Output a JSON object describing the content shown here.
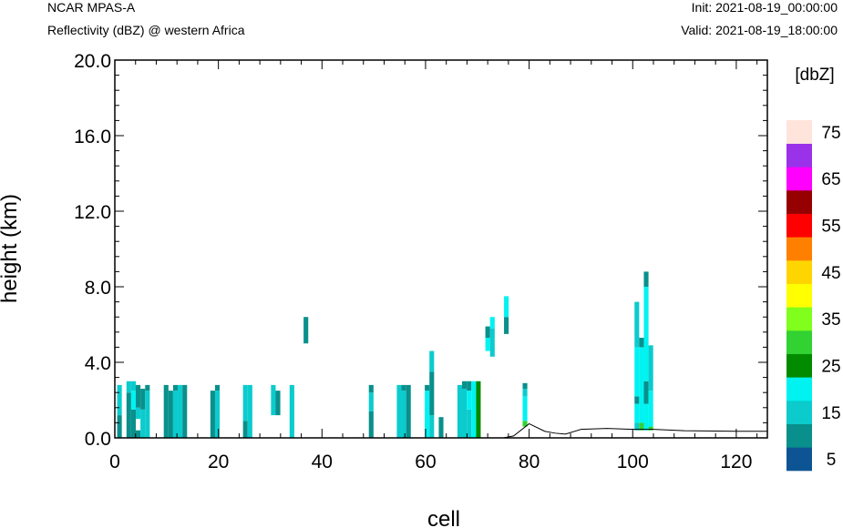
{
  "header": {
    "model": "NCAR MPAS-A",
    "field": "Reflectivity (dBZ) @ western Africa",
    "init": "Init: 2021-08-19_00:00:00",
    "valid": "Valid: 2021-08-19_18:00:00"
  },
  "chart_data": {
    "type": "heatmap",
    "xlabel": "cell",
    "ylabel": "height (km)",
    "xlim": [
      0,
      126
    ],
    "ylim": [
      0,
      20
    ],
    "x_ticks": [
      "0",
      "20",
      "40",
      "60",
      "80",
      "100",
      "120"
    ],
    "y_ticks": [
      "0.0",
      "4.0",
      "8.0",
      "12.0",
      "16.0",
      "20.0"
    ],
    "grid": false,
    "colorbar": {
      "unit": "[dbZ]",
      "labels": [
        "5",
        "15",
        "25",
        "35",
        "45",
        "55",
        "65",
        "75"
      ],
      "colors": [
        "#0d5494",
        "#09908c",
        "#0bcbcd",
        "#00f3f1",
        "#038b00",
        "#32d232",
        "#80ff1c",
        "#ffff00",
        "#ffd500",
        "#ff8000",
        "#ff0000",
        "#960000",
        "#ff00ff",
        "#9932e8",
        "#ffe4dc"
      ]
    },
    "terrain": {
      "x": [
        0,
        75,
        77,
        80,
        83,
        85,
        87,
        90,
        95,
        100,
        104,
        110,
        120,
        126
      ],
      "y": [
        0,
        0,
        0.1,
        0.75,
        0.35,
        0.25,
        0.2,
        0.45,
        0.5,
        0.45,
        0.45,
        0.38,
        0.35,
        0.35
      ]
    },
    "cells": [
      {
        "x": 0.9,
        "segments": [
          [
            0,
            1.2,
            5
          ],
          [
            1.2,
            2.8,
            10
          ]
        ]
      },
      {
        "x": 2.7,
        "segments": [
          [
            0,
            2.4,
            5
          ],
          [
            2.4,
            3.0,
            10
          ]
        ]
      },
      {
        "x": 3.6,
        "segments": [
          [
            0,
            1.5,
            5
          ],
          [
            1.5,
            2.5,
            15
          ],
          [
            2.5,
            3.0,
            10
          ]
        ]
      },
      {
        "x": 4.5,
        "segments": [
          [
            0,
            0.4,
            5
          ],
          [
            1.0,
            1.6,
            10
          ],
          [
            1.6,
            2.8,
            5
          ]
        ]
      },
      {
        "x": 5.4,
        "segments": [
          [
            0,
            1.5,
            10
          ],
          [
            1.5,
            2.6,
            5
          ]
        ]
      },
      {
        "x": 6.3,
        "segments": [
          [
            0,
            2.5,
            10
          ],
          [
            2.5,
            2.8,
            5
          ]
        ]
      },
      {
        "x": 9.9,
        "segments": [
          [
            0,
            2.8,
            5
          ]
        ]
      },
      {
        "x": 10.8,
        "segments": [
          [
            0,
            2.5,
            5
          ]
        ]
      },
      {
        "x": 11.7,
        "segments": [
          [
            0,
            2.5,
            10
          ],
          [
            2.5,
            2.8,
            5
          ]
        ]
      },
      {
        "x": 12.6,
        "segments": [
          [
            0,
            2.8,
            10
          ]
        ]
      },
      {
        "x": 13.5,
        "segments": [
          [
            0,
            2.8,
            5
          ]
        ]
      },
      {
        "x": 18.9,
        "segments": [
          [
            0,
            2.5,
            5
          ]
        ]
      },
      {
        "x": 19.8,
        "segments": [
          [
            0,
            2.5,
            10
          ],
          [
            2.5,
            2.8,
            5
          ]
        ]
      },
      {
        "x": 25.2,
        "segments": [
          [
            0,
            0.9,
            5
          ],
          [
            0.9,
            2.8,
            10
          ]
        ]
      },
      {
        "x": 26.1,
        "segments": [
          [
            0,
            2.8,
            10
          ]
        ]
      },
      {
        "x": 30.6,
        "segments": [
          [
            1.2,
            2.8,
            10
          ]
        ]
      },
      {
        "x": 31.5,
        "segments": [
          [
            1.2,
            2.5,
            5
          ]
        ]
      },
      {
        "x": 34.2,
        "segments": [
          [
            0,
            2.8,
            10
          ]
        ]
      },
      {
        "x": 36.9,
        "segments": [
          [
            5.0,
            6.4,
            5
          ]
        ]
      },
      {
        "x": 49.5,
        "segments": [
          [
            0,
            1.4,
            5
          ],
          [
            1.4,
            2.4,
            10
          ],
          [
            2.4,
            2.8,
            5
          ]
        ]
      },
      {
        "x": 54.9,
        "segments": [
          [
            0,
            2.8,
            10
          ]
        ]
      },
      {
        "x": 55.8,
        "segments": [
          [
            0,
            2.5,
            10
          ],
          [
            2.5,
            2.8,
            5
          ]
        ]
      },
      {
        "x": 56.7,
        "segments": [
          [
            0,
            2.8,
            5
          ]
        ]
      },
      {
        "x": 60.3,
        "segments": [
          [
            0,
            2.5,
            15
          ],
          [
            2.5,
            2.8,
            5
          ]
        ]
      },
      {
        "x": 61.2,
        "segments": [
          [
            0,
            1.2,
            10
          ],
          [
            1.2,
            3.5,
            5
          ],
          [
            3.5,
            4.6,
            10
          ]
        ]
      },
      {
        "x": 63.0,
        "segments": [
          [
            0,
            1.1,
            5
          ]
        ]
      },
      {
        "x": 66.6,
        "segments": [
          [
            0,
            2.8,
            10
          ]
        ]
      },
      {
        "x": 67.5,
        "segments": [
          [
            0,
            2.6,
            10
          ],
          [
            2.6,
            3.0,
            5
          ]
        ]
      },
      {
        "x": 68.4,
        "segments": [
          [
            0,
            1.5,
            10
          ],
          [
            1.5,
            2.5,
            15
          ],
          [
            2.5,
            3.0,
            5
          ]
        ]
      },
      {
        "x": 69.3,
        "segments": [
          [
            0,
            3.0,
            15
          ]
        ]
      },
      {
        "x": 70.2,
        "segments": [
          [
            0,
            3.0,
            20
          ]
        ]
      },
      {
        "x": 72.0,
        "segments": [
          [
            4.6,
            5.3,
            15
          ],
          [
            5.3,
            5.9,
            5
          ]
        ]
      },
      {
        "x": 72.9,
        "segments": [
          [
            4.3,
            5.8,
            10
          ],
          [
            5.8,
            6.4,
            15
          ]
        ]
      },
      {
        "x": 75.6,
        "segments": [
          [
            5.5,
            6.4,
            5
          ],
          [
            6.4,
            7.5,
            15
          ]
        ]
      },
      {
        "x": 79.2,
        "segments": [
          [
            0.6,
            0.9,
            25
          ],
          [
            0.9,
            2.2,
            15
          ],
          [
            2.2,
            2.6,
            10
          ],
          [
            2.6,
            2.9,
            5
          ]
        ]
      },
      {
        "x": 100.8,
        "segments": [
          [
            0.4,
            0.8,
            10
          ],
          [
            0.8,
            1.8,
            15
          ],
          [
            1.8,
            2.2,
            5
          ],
          [
            2.2,
            4.8,
            15
          ],
          [
            4.8,
            7.2,
            10
          ]
        ]
      },
      {
        "x": 101.7,
        "segments": [
          [
            0.4,
            0.8,
            25
          ],
          [
            0.8,
            4.8,
            15
          ],
          [
            4.8,
            5.3,
            5
          ]
        ]
      },
      {
        "x": 102.6,
        "segments": [
          [
            0.4,
            1.8,
            15
          ],
          [
            1.8,
            3.0,
            5
          ],
          [
            3.0,
            8.0,
            15
          ],
          [
            8.0,
            8.8,
            5
          ]
        ]
      },
      {
        "x": 103.5,
        "segments": [
          [
            0.4,
            0.6,
            25
          ],
          [
            0.6,
            2.5,
            15
          ],
          [
            2.5,
            4.9,
            10
          ]
        ]
      }
    ]
  }
}
